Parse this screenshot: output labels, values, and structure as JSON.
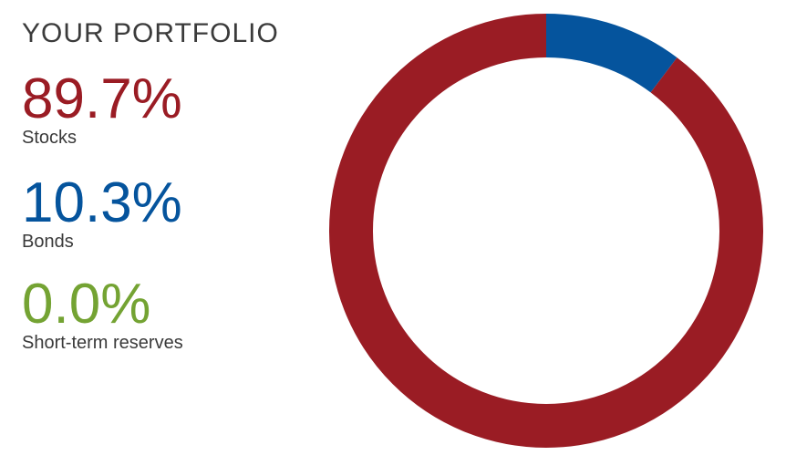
{
  "panel": {
    "title": "YOUR PORTFOLIO",
    "stats": [
      {
        "value": "89.7%",
        "label": "Stocks",
        "color": "#9a1c24"
      },
      {
        "value": "10.3%",
        "label": "Bonds",
        "color": "#05549d"
      },
      {
        "value": "0.0%",
        "label": "Short-term reserves",
        "color": "#74a333"
      }
    ]
  },
  "chart_data": {
    "type": "pie",
    "variant": "donut",
    "title": "YOUR PORTFOLIO",
    "total": 100,
    "legend_position": "left",
    "slices_clockwise_from_top": [
      {
        "label": "Bonds",
        "value": 10.3,
        "color": "#05549d"
      },
      {
        "label": "Stocks",
        "value": 89.7,
        "color": "#9a1c24"
      },
      {
        "label": "Short-term reserves",
        "value": 0.0,
        "color": "#74a333"
      }
    ]
  }
}
